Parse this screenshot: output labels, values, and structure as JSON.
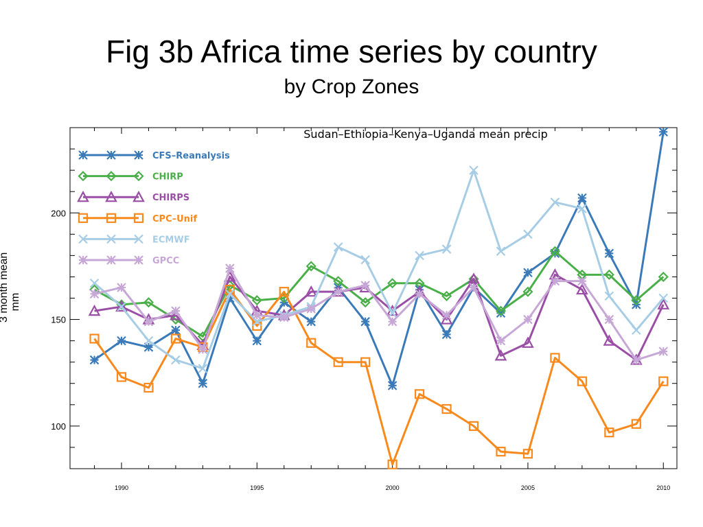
{
  "slide": {
    "title": "Fig 3b Africa time series by country",
    "subtitle": "by Crop Zones"
  },
  "chart_data": {
    "type": "line",
    "title": "Sudan–Ethiopia–Kenya–Uganda mean precip",
    "ylabel_line1": "3 month mean",
    "ylabel_line2": "mm",
    "xlabel": "",
    "xlim": [
      1988.1,
      2010.5
    ],
    "ylim": [
      80,
      240
    ],
    "xticks": [
      1990,
      1995,
      2000,
      2005,
      2010
    ],
    "yticks": [
      100,
      150,
      200
    ],
    "grid": false,
    "legend_position": "top-left",
    "x": [
      1989,
      1990,
      1991,
      1992,
      1993,
      1994,
      1995,
      1996,
      1997,
      1998,
      1999,
      2000,
      2001,
      2002,
      2003,
      2004,
      2005,
      2006,
      2007,
      2008,
      2009,
      2010
    ],
    "series": [
      {
        "name": "CFS–Reanalysis",
        "color": "#3a7ab8",
        "marker": "star",
        "values": [
          131,
          140,
          137,
          145,
          120,
          160,
          140,
          158,
          149,
          165,
          149,
          119,
          164,
          143,
          165,
          153,
          172,
          181,
          207,
          181,
          157,
          238
        ]
      },
      {
        "name": "CHIRP",
        "color": "#4aaf48",
        "marker": "diamond",
        "values": [
          164,
          157,
          158,
          150,
          142,
          166,
          159,
          160,
          175,
          168,
          158,
          167,
          167,
          161,
          169,
          154,
          163,
          182,
          171,
          171,
          159,
          170
        ]
      },
      {
        "name": "CHIRPS",
        "color": "#9a4ea6",
        "marker": "triangle",
        "values": [
          154,
          156,
          150,
          152,
          138,
          170,
          154,
          152,
          163,
          163,
          165,
          154,
          163,
          150,
          169,
          133,
          139,
          171,
          164,
          140,
          131,
          157
        ]
      },
      {
        "name": "CPC–Unif",
        "color": "#f7891d",
        "marker": "square",
        "values": [
          141,
          123,
          118,
          141,
          137,
          164,
          147,
          163,
          139,
          130,
          130,
          82,
          115,
          108,
          100,
          88,
          87,
          132,
          121,
          97,
          101,
          121
        ]
      },
      {
        "name": "ECMWF",
        "color": "#a6cde5",
        "marker": "x",
        "values": [
          167,
          156,
          140,
          131,
          127,
          162,
          149,
          152,
          156,
          184,
          178,
          153,
          180,
          183,
          220,
          182,
          190,
          205,
          202,
          161,
          145,
          160
        ]
      },
      {
        "name": "GPCC",
        "color": "#c6a7d6",
        "marker": "star",
        "values": [
          162,
          165,
          149,
          154,
          136,
          174,
          152,
          151,
          155,
          163,
          166,
          149,
          162,
          152,
          165,
          140,
          150,
          168,
          168,
          150,
          131,
          135
        ]
      }
    ]
  }
}
